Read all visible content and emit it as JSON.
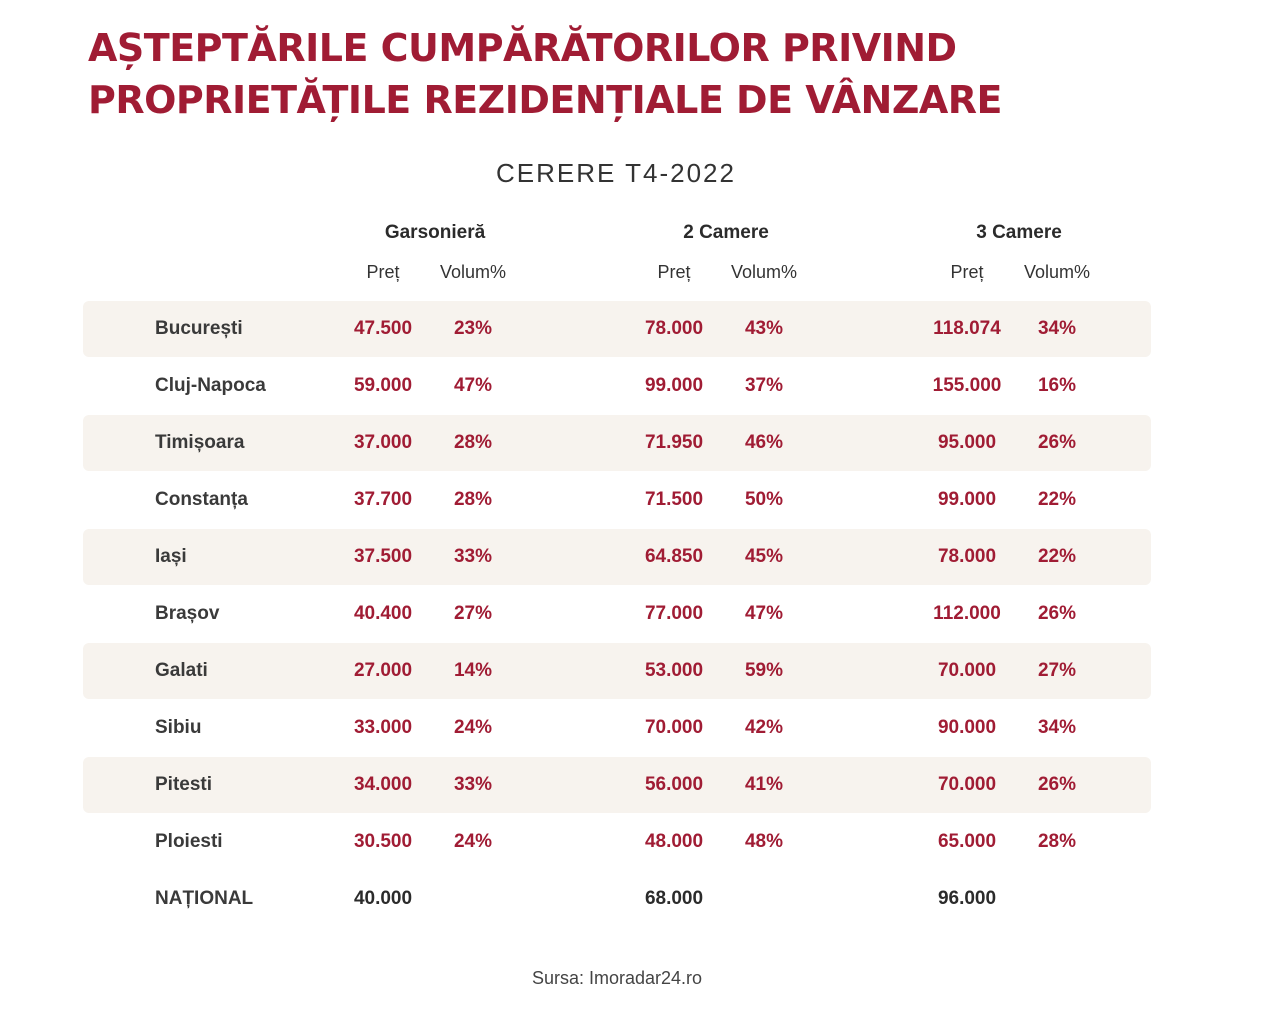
{
  "title": {
    "line1": "AȘTEPTĂRILE CUMPĂRĂTORILOR PRIVIND",
    "line2": "PROPRIETĂȚILE REZIDENȚIALE DE VÂNZARE"
  },
  "subtitle": "CERERE T4-2022",
  "groups": [
    {
      "label": "Garsonieră",
      "price_label": "Preț",
      "volume_label": "Volum%"
    },
    {
      "label": "2 Camere",
      "price_label": "Preț",
      "volume_label": "Volum%"
    },
    {
      "label": "3 Camere",
      "price_label": "Preț",
      "volume_label": "Volum%"
    }
  ],
  "rows": [
    {
      "city": "București",
      "g_price": "47.500",
      "g_vol": "23%",
      "c2_price": "78.000",
      "c2_vol": "43%",
      "c3_price": "118.074",
      "c3_vol": "34%"
    },
    {
      "city": "Cluj-Napoca",
      "g_price": "59.000",
      "g_vol": "47%",
      "c2_price": "99.000",
      "c2_vol": "37%",
      "c3_price": "155.000",
      "c3_vol": "16%"
    },
    {
      "city": "Timișoara",
      "g_price": "37.000",
      "g_vol": "28%",
      "c2_price": "71.950",
      "c2_vol": "46%",
      "c3_price": "95.000",
      "c3_vol": "26%"
    },
    {
      "city": "Constanța",
      "g_price": "37.700",
      "g_vol": "28%",
      "c2_price": "71.500",
      "c2_vol": "50%",
      "c3_price": "99.000",
      "c3_vol": "22%"
    },
    {
      "city": "Iași",
      "g_price": "37.500",
      "g_vol": "33%",
      "c2_price": "64.850",
      "c2_vol": "45%",
      "c3_price": "78.000",
      "c3_vol": "22%"
    },
    {
      "city": "Brașov",
      "g_price": "40.400",
      "g_vol": "27%",
      "c2_price": "77.000",
      "c2_vol": "47%",
      "c3_price": "112.000",
      "c3_vol": "26%"
    },
    {
      "city": "Galati",
      "g_price": "27.000",
      "g_vol": "14%",
      "c2_price": "53.000",
      "c2_vol": "59%",
      "c3_price": "70.000",
      "c3_vol": "27%"
    },
    {
      "city": "Sibiu",
      "g_price": "33.000",
      "g_vol": "24%",
      "c2_price": "70.000",
      "c2_vol": "42%",
      "c3_price": "90.000",
      "c3_vol": "34%"
    },
    {
      "city": "Pitesti",
      "g_price": "34.000",
      "g_vol": "33%",
      "c2_price": "56.000",
      "c2_vol": "41%",
      "c3_price": "70.000",
      "c3_vol": "26%"
    },
    {
      "city": "Ploiesti",
      "g_price": "30.500",
      "g_vol": "24%",
      "c2_price": "48.000",
      "c2_vol": "48%",
      "c3_price": "65.000",
      "c3_vol": "28%"
    }
  ],
  "national": {
    "city": "NAȚIONAL",
    "g_price": "40.000",
    "c2_price": "68.000",
    "c3_price": "96.000"
  },
  "source": "Sursa: Imoradar24.ro",
  "colors": {
    "accent": "#a01c34",
    "row_shade": "#f7f3ee"
  }
}
